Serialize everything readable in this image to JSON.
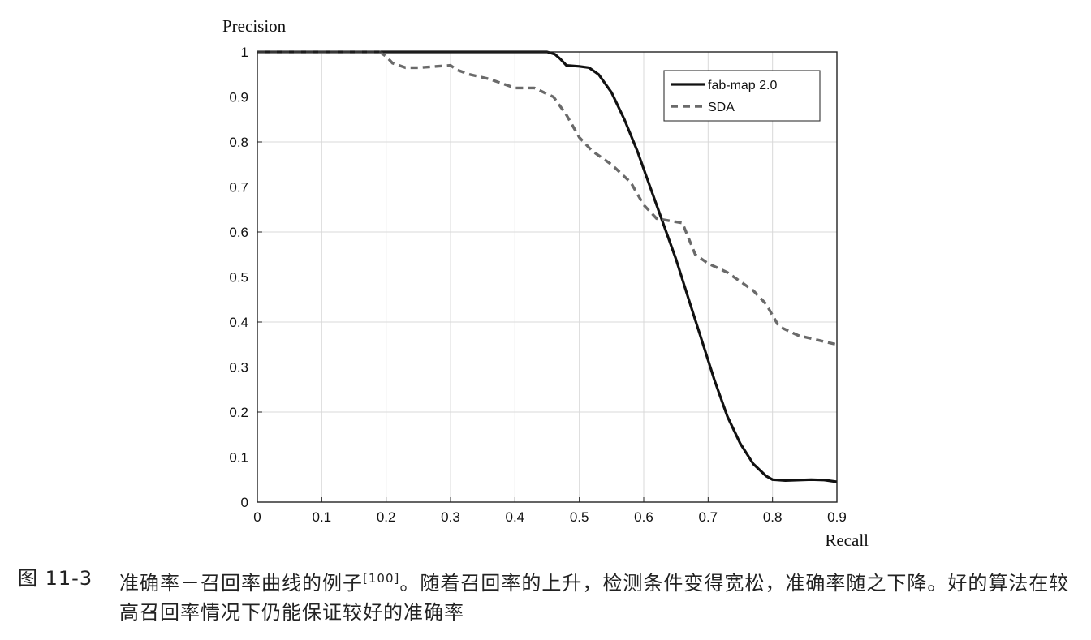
{
  "chart_data": {
    "type": "line",
    "title": "",
    "ylabel": "Precision",
    "xlabel": "Recall",
    "xlim": [
      0,
      0.9
    ],
    "ylim": [
      0,
      1
    ],
    "x_ticks": [
      "0",
      "0.1",
      "0.2",
      "0.3",
      "0.4",
      "0.5",
      "0.6",
      "0.7",
      "0.8",
      "0.9"
    ],
    "y_ticks": [
      "0",
      "0.1",
      "0.2",
      "0.3",
      "0.4",
      "0.5",
      "0.6",
      "0.7",
      "0.8",
      "0.9",
      "1"
    ],
    "grid": true,
    "legend_position": "top-right",
    "series": [
      {
        "name": "fab-map 2.0",
        "style": "solid",
        "color": "#111111",
        "points": [
          [
            0,
            1
          ],
          [
            0.2,
            1
          ],
          [
            0.4,
            1
          ],
          [
            0.45,
            1
          ],
          [
            0.462,
            0.995
          ],
          [
            0.47,
            0.985
          ],
          [
            0.48,
            0.97
          ],
          [
            0.5,
            0.968
          ],
          [
            0.515,
            0.965
          ],
          [
            0.53,
            0.95
          ],
          [
            0.55,
            0.91
          ],
          [
            0.57,
            0.85
          ],
          [
            0.59,
            0.78
          ],
          [
            0.61,
            0.7
          ],
          [
            0.63,
            0.62
          ],
          [
            0.65,
            0.54
          ],
          [
            0.67,
            0.45
          ],
          [
            0.69,
            0.36
          ],
          [
            0.71,
            0.27
          ],
          [
            0.73,
            0.19
          ],
          [
            0.75,
            0.13
          ],
          [
            0.77,
            0.085
          ],
          [
            0.79,
            0.058
          ],
          [
            0.8,
            0.05
          ],
          [
            0.82,
            0.048
          ],
          [
            0.86,
            0.05
          ],
          [
            0.88,
            0.049
          ],
          [
            0.9,
            0.045
          ]
        ]
      },
      {
        "name": "SDA",
        "style": "dashed",
        "color": "#6a6a6a",
        "points": [
          [
            0,
            1
          ],
          [
            0.19,
            1
          ],
          [
            0.2,
            0.99
          ],
          [
            0.21,
            0.975
          ],
          [
            0.23,
            0.965
          ],
          [
            0.25,
            0.965
          ],
          [
            0.3,
            0.97
          ],
          [
            0.31,
            0.96
          ],
          [
            0.33,
            0.95
          ],
          [
            0.36,
            0.94
          ],
          [
            0.4,
            0.92
          ],
          [
            0.43,
            0.92
          ],
          [
            0.46,
            0.9
          ],
          [
            0.48,
            0.86
          ],
          [
            0.5,
            0.81
          ],
          [
            0.52,
            0.78
          ],
          [
            0.55,
            0.75
          ],
          [
            0.58,
            0.71
          ],
          [
            0.6,
            0.66
          ],
          [
            0.62,
            0.63
          ],
          [
            0.66,
            0.62
          ],
          [
            0.68,
            0.55
          ],
          [
            0.7,
            0.53
          ],
          [
            0.73,
            0.51
          ],
          [
            0.77,
            0.47
          ],
          [
            0.79,
            0.44
          ],
          [
            0.81,
            0.39
          ],
          [
            0.84,
            0.37
          ],
          [
            0.87,
            0.36
          ],
          [
            0.9,
            0.35
          ]
        ]
      }
    ]
  },
  "caption": {
    "label": "图 11-3",
    "text_before": "准确率－召回率曲线的例子",
    "citation": "[100]",
    "text_after": "。随着召回率的上升，检测条件变得宽松，准确率随之下降。好的算法在较高召回率情况下仍能保证较好的准确率"
  }
}
